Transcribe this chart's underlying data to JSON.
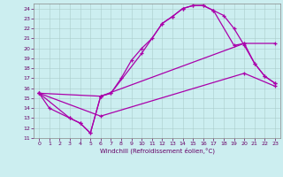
{
  "xlabel": "Windchill (Refroidissement éolien,°C)",
  "bg_color": "#cceef0",
  "grid_color": "#aacccc",
  "line_color": "#aa00aa",
  "xlim": [
    -0.5,
    23.5
  ],
  "ylim": [
    11,
    24.5
  ],
  "xticks": [
    0,
    1,
    2,
    3,
    4,
    5,
    6,
    7,
    8,
    9,
    10,
    11,
    12,
    13,
    14,
    15,
    16,
    17,
    18,
    19,
    20,
    21,
    22,
    23
  ],
  "yticks": [
    11,
    12,
    13,
    14,
    15,
    16,
    17,
    18,
    19,
    20,
    21,
    22,
    23,
    24
  ],
  "line1_x": [
    0,
    1,
    3,
    4,
    5,
    6,
    7,
    8,
    9,
    10,
    11,
    12,
    13,
    14,
    15,
    16,
    17,
    18,
    19,
    20,
    21,
    22,
    23
  ],
  "line1_y": [
    15.5,
    14.0,
    13.0,
    12.5,
    11.5,
    15.2,
    15.5,
    17.0,
    18.8,
    20.0,
    21.0,
    22.5,
    23.2,
    24.0,
    24.3,
    24.3,
    23.8,
    23.3,
    22.0,
    20.3,
    18.5,
    17.2,
    16.5
  ],
  "line2_x": [
    0,
    3,
    4,
    5,
    6,
    7,
    10,
    12,
    13,
    14,
    15,
    16,
    17,
    19,
    20,
    21,
    22,
    23
  ],
  "line2_y": [
    15.5,
    13.0,
    12.5,
    11.5,
    15.2,
    15.5,
    19.5,
    22.5,
    23.2,
    24.0,
    24.3,
    24.3,
    23.8,
    20.3,
    20.5,
    18.5,
    17.2,
    16.5
  ],
  "line3_x": [
    0,
    6,
    20,
    23
  ],
  "line3_y": [
    15.5,
    15.2,
    20.5,
    20.5
  ],
  "line4_x": [
    0,
    6,
    20,
    23
  ],
  "line4_y": [
    15.5,
    13.2,
    17.5,
    16.2
  ]
}
